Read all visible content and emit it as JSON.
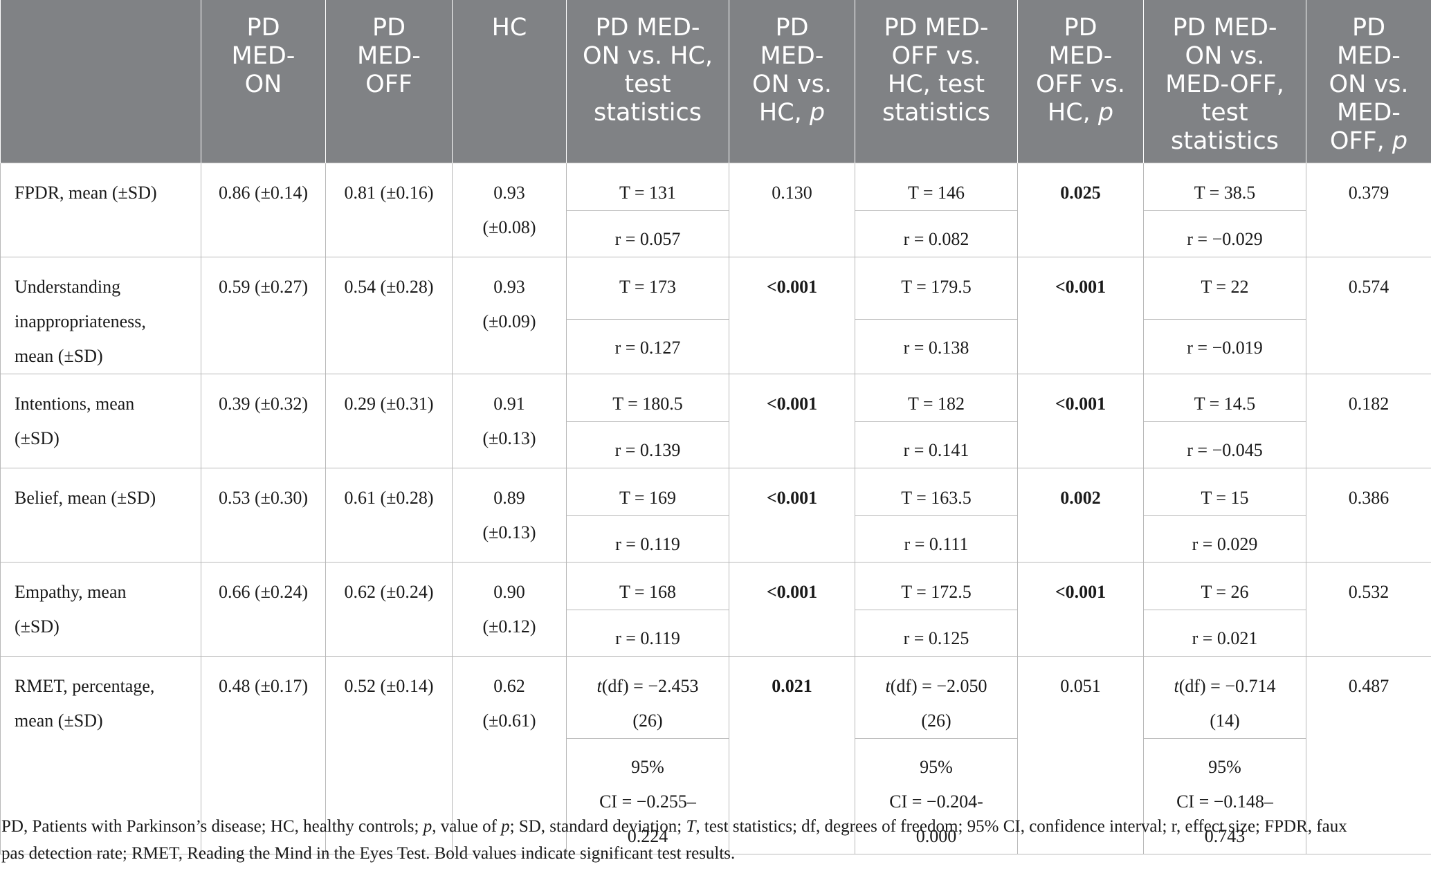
{
  "headers": [
    "",
    "PD MED-ON",
    "PD MED-OFF",
    "HC",
    "PD MED-ON vs. HC, test statistics",
    "PD MED-ON vs. HC, p",
    "PD MED-OFF vs. HC, test statistics",
    "PD MED-OFF vs. HC, p",
    "PD MED-ON vs. MED-OFF, test statistics",
    "PD MED-ON vs. MED-OFF, p"
  ],
  "header_display": {
    "c1": [
      "PD",
      "MED-",
      "ON"
    ],
    "c2": [
      "PD",
      "MED-",
      "OFF"
    ],
    "c3": [
      "HC"
    ],
    "c4": [
      "PD MED-",
      "ON vs. HC,",
      "test",
      "statistics"
    ],
    "c5": [
      "PD",
      "MED-",
      "ON vs.",
      "HC, "
    ],
    "c5_italic": "p",
    "c6": [
      "PD MED-",
      "OFF vs.",
      "HC, test",
      "statistics"
    ],
    "c7": [
      "PD",
      "MED-",
      "OFF vs.",
      "HC, "
    ],
    "c7_italic": "p",
    "c8": [
      "PD MED-",
      "ON vs.",
      "MED-OFF,",
      "test",
      "statistics"
    ],
    "c9": [
      "PD",
      "MED-",
      "ON vs.",
      "MED-",
      "OFF, "
    ],
    "c9_italic": "p"
  },
  "rows": [
    {
      "label": [
        "FPDR, mean (±SD)"
      ],
      "on": "0.86 (±0.14)",
      "off": "0.81 (±0.16)",
      "hc": [
        "0.93",
        "(±0.08)"
      ],
      "on_hc_stat": [
        "T = 131"
      ],
      "on_hc_r": [
        "r = 0.057"
      ],
      "on_hc_p": "0.130",
      "on_hc_p_bold": false,
      "off_hc_stat": [
        "T = 146"
      ],
      "off_hc_r": [
        "r = 0.082"
      ],
      "off_hc_p": "0.025",
      "off_hc_p_bold": true,
      "on_off_stat": [
        "T = 38.5"
      ],
      "on_off_r": [
        "r = −0.029"
      ],
      "on_off_p": "0.379"
    },
    {
      "label": [
        "Understanding",
        "inappropriateness,",
        "mean (±SD)"
      ],
      "on": "0.59 (±0.27)",
      "off": "0.54 (±0.28)",
      "hc": [
        "0.93",
        "(±0.09)"
      ],
      "on_hc_stat": [
        "T = 173"
      ],
      "on_hc_r": [
        "r = 0.127"
      ],
      "on_hc_p": "<0.001",
      "on_hc_p_bold": true,
      "off_hc_stat": [
        "T = 179.5"
      ],
      "off_hc_r": [
        "r = 0.138"
      ],
      "off_hc_p": "<0.001",
      "off_hc_p_bold": true,
      "on_off_stat": [
        "T = 22"
      ],
      "on_off_r": [
        "r = −0.019"
      ],
      "on_off_p": "0.574"
    },
    {
      "label": [
        "Intentions, mean",
        "(±SD)"
      ],
      "on": "0.39 (±0.32)",
      "off": "0.29 (±0.31)",
      "hc": [
        "0.91",
        "(±0.13)"
      ],
      "on_hc_stat": [
        "T = 180.5"
      ],
      "on_hc_r": [
        "r = 0.139"
      ],
      "on_hc_p": "<0.001",
      "on_hc_p_bold": true,
      "off_hc_stat": [
        "T = 182"
      ],
      "off_hc_r": [
        "r = 0.141"
      ],
      "off_hc_p": "<0.001",
      "off_hc_p_bold": true,
      "on_off_stat": [
        "T = 14.5"
      ],
      "on_off_r": [
        "r = −0.045"
      ],
      "on_off_p": "0.182"
    },
    {
      "label": [
        "Belief, mean (±SD)"
      ],
      "on": "0.53 (±0.30)",
      "off": "0.61 (±0.28)",
      "hc": [
        "0.89",
        "(±0.13)"
      ],
      "on_hc_stat": [
        "T = 169"
      ],
      "on_hc_r": [
        "r = 0.119"
      ],
      "on_hc_p": "<0.001",
      "on_hc_p_bold": true,
      "off_hc_stat": [
        "T = 163.5"
      ],
      "off_hc_r": [
        "r = 0.111"
      ],
      "off_hc_p": "0.002",
      "off_hc_p_bold": true,
      "on_off_stat": [
        "T = 15"
      ],
      "on_off_r": [
        "r = 0.029"
      ],
      "on_off_p": "0.386"
    },
    {
      "label": [
        "Empathy, mean",
        "(±SD)"
      ],
      "on": "0.66 (±0.24)",
      "off": "0.62 (±0.24)",
      "hc": [
        "0.90",
        "(±0.12)"
      ],
      "on_hc_stat": [
        "T = 168"
      ],
      "on_hc_r": [
        "r = 0.119"
      ],
      "on_hc_p": "<0.001",
      "on_hc_p_bold": true,
      "off_hc_stat": [
        "T = 172.5"
      ],
      "off_hc_r": [
        "r = 0.125"
      ],
      "off_hc_p": "<0.001",
      "off_hc_p_bold": true,
      "on_off_stat": [
        "T = 26"
      ],
      "on_off_r": [
        "r = 0.021"
      ],
      "on_off_p": "0.532"
    },
    {
      "label": [
        "RMET, percentage,",
        "mean (±SD)"
      ],
      "on": "0.48 (±0.17)",
      "off": "0.52 (±0.14)",
      "hc": [
        "0.62",
        "(±0.61)"
      ],
      "on_hc_stat_t": "t",
      "on_hc_stat": [
        "(df) = −2.453",
        "(26)"
      ],
      "on_hc_r": [
        "95%",
        "CI = −0.255–",
        "0.224"
      ],
      "on_hc_p": "0.021",
      "on_hc_p_bold": true,
      "off_hc_stat_t": "t",
      "off_hc_stat": [
        "(df) = −2.050",
        "(26)"
      ],
      "off_hc_r": [
        "95%",
        "CI = −0.204-",
        "0.000"
      ],
      "off_hc_p": "0.051",
      "off_hc_p_bold": false,
      "on_off_stat_t": "t",
      "on_off_stat": [
        "(df) = −0.714",
        "(14)"
      ],
      "on_off_r": [
        "95%",
        "CI = −0.148–",
        "0.743"
      ],
      "on_off_p": "0.487"
    }
  ],
  "footnote": {
    "line1_parts": [
      "PD, Patients with Parkinson’s disease; HC, healthy controls; ",
      "p",
      ", value of ",
      "p",
      "; SD, standard deviation; ",
      "T",
      ", test statistics; df, degrees of freedom; 95% CI, confidence interval; r, effect size; FPDR, faux"
    ],
    "line2": "pas detection rate; RMET, Reading the Mind in the Eyes Test. Bold values indicate significant test results."
  }
}
